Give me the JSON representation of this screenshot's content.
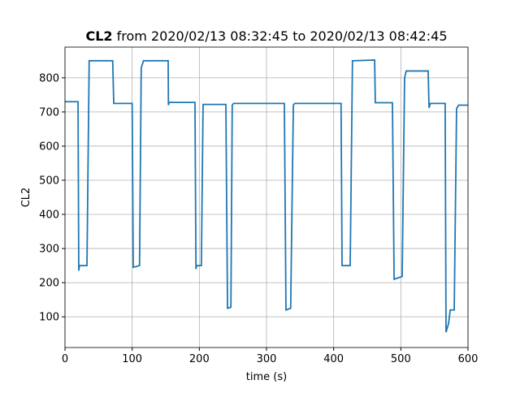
{
  "chart_data": {
    "type": "line",
    "title": [
      "CL2",
      "from 2020/02/13 08:32:45 to 2020/02/13 08:42:45"
    ],
    "xlabel": "time (s)",
    "ylabel": "CL2",
    "xlim": [
      0,
      600
    ],
    "ylim": [
      10,
      890
    ],
    "xticks": [
      0,
      100,
      200,
      300,
      400,
      500,
      600
    ],
    "yticks": [
      100,
      200,
      300,
      400,
      500,
      600,
      700,
      800
    ],
    "grid": true,
    "series": [
      {
        "name": "CL2",
        "color": "#1f77b4",
        "x": [
          0,
          19.4,
          20.5,
          21.5,
          32.7,
          36,
          71,
          72.6,
          100,
          101.6,
          111,
          113.5,
          117,
          153.6,
          154,
          155,
          193.5,
          195,
          196,
          203,
          205.6,
          239.5,
          242,
          247,
          249,
          251,
          326.6,
          329,
          336,
          340,
          342,
          411,
          412.5,
          424.6,
          428,
          461,
          462,
          487.5,
          490,
          502,
          505.6,
          508,
          540.7,
          542,
          544,
          566,
          567.3,
          571,
          573.5,
          579.5,
          583,
          586,
          600
        ],
        "values": [
          730,
          730,
          235,
          250,
          250,
          850,
          850,
          725,
          725,
          245,
          250,
          830,
          850,
          850,
          720,
          728,
          728,
          240,
          250,
          250,
          722,
          722,
          125,
          128,
          720,
          725,
          725,
          120,
          125,
          720,
          725,
          725,
          250,
          250,
          850,
          852,
          727,
          727,
          210,
          218,
          800,
          820,
          820,
          712,
          725,
          725,
          55,
          80,
          120,
          120,
          710,
          720,
          720
        ]
      }
    ]
  }
}
